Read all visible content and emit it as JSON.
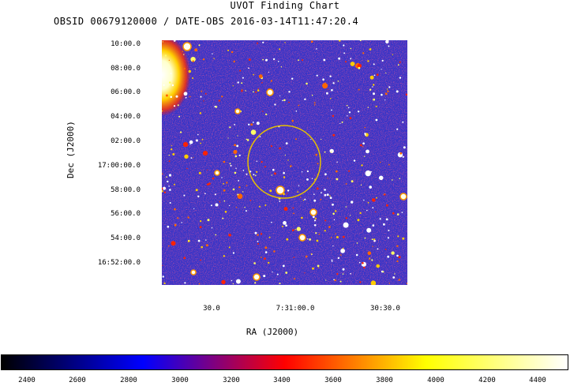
{
  "header": {
    "title": "UVOT Finding Chart",
    "subtitle": "OBSID 00679120000 / DATE-OBS 2016-03-14T11:47:20.4"
  },
  "axes": {
    "ylabel": "Dec (J2000)",
    "xlabel": "RA (J2000)",
    "dec_ticks": [
      "10:00.0",
      "08:00.0",
      "06:00.0",
      "04:00.0",
      "02:00.0",
      "17:00:00.0",
      "58:00.0",
      "56:00.0",
      "54:00.0",
      "16:52:00.0"
    ],
    "ra_ticks": [
      "30.0",
      "7:31:00.0",
      "30:30.0"
    ]
  },
  "colorbar": {
    "ticks": [
      "2400",
      "2600",
      "2800",
      "3000",
      "3200",
      "3400",
      "3600",
      "3800",
      "4000",
      "4200",
      "4400"
    ],
    "colors": [
      "#000000",
      "#0000ff",
      "#ff0000",
      "#ffff00",
      "#ffffff"
    ]
  },
  "image": {
    "background": "#3333cc",
    "circle_color": "#e8c000"
  }
}
